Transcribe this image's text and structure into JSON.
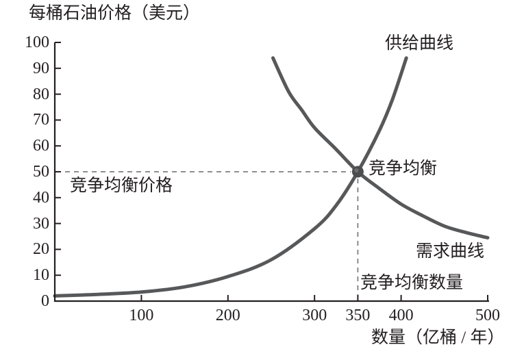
{
  "chart_data": {
    "type": "line",
    "ylabel": "每桶石油价格（美元）",
    "xlabel": "数量（亿桶 / 年）",
    "xlim": [
      0,
      500
    ],
    "ylim": [
      0,
      100
    ],
    "x_ticks": [
      100,
      200,
      300,
      350,
      400,
      500
    ],
    "y_ticks": [
      0,
      10,
      20,
      30,
      40,
      50,
      60,
      70,
      80,
      90,
      100
    ],
    "grid": false,
    "legend_position": "inline-annotations",
    "series": [
      {
        "name": "供给曲线",
        "points": [
          [
            0,
            2
          ],
          [
            50,
            2.6
          ],
          [
            100,
            3.5
          ],
          [
            150,
            5.5
          ],
          [
            200,
            9.5
          ],
          [
            250,
            16
          ],
          [
            300,
            28
          ],
          [
            325,
            37
          ],
          [
            350,
            50
          ],
          [
            375,
            66
          ],
          [
            390,
            78
          ],
          [
            406,
            94
          ]
        ]
      },
      {
        "name": "需求曲线",
        "points": [
          [
            252,
            94
          ],
          [
            270,
            81
          ],
          [
            285,
            74
          ],
          [
            300,
            67
          ],
          [
            324,
            59
          ],
          [
            350,
            50
          ],
          [
            375,
            43.5
          ],
          [
            400,
            37.5
          ],
          [
            425,
            33
          ],
          [
            450,
            29
          ],
          [
            475,
            26.5
          ],
          [
            500,
            24.5
          ]
        ]
      }
    ],
    "equilibrium": {
      "x": 350,
      "y": 50
    },
    "annotations": {
      "supply_label": "供给曲线",
      "demand_label": "需求曲线",
      "equilibrium_label": "竞争均衡",
      "equilibrium_price_label": "竞争均衡价格",
      "equilibrium_quantity_label": "竞争均衡数量"
    },
    "colors": {
      "curve": "#57585a",
      "axis": "#231f20",
      "dashed": "#7f7f7f",
      "dot": "#4c4d4f",
      "text": "#231f20",
      "background": "#ffffff"
    }
  }
}
